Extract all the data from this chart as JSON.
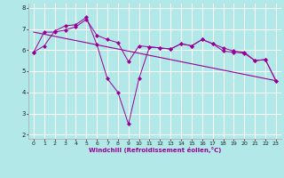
{
  "xlabel": "Windchill (Refroidissement éolien,°C)",
  "background_color": "#b2e8e8",
  "line_color": "#990099",
  "grid_color": "#ffffff",
  "xlim": [
    -0.5,
    23.5
  ],
  "ylim": [
    1.8,
    8.2
  ],
  "xticks": [
    0,
    1,
    2,
    3,
    4,
    5,
    6,
    7,
    8,
    9,
    10,
    11,
    12,
    13,
    14,
    15,
    16,
    17,
    18,
    19,
    20,
    21,
    22,
    23
  ],
  "yticks": [
    2,
    3,
    4,
    5,
    6,
    7,
    8
  ],
  "series1_x": [
    0,
    1,
    2,
    3,
    4,
    5,
    6,
    7,
    8,
    9,
    10,
    11,
    12,
    13,
    14,
    15,
    16,
    17,
    18,
    19,
    20,
    21,
    22,
    23
  ],
  "series1_y": [
    5.9,
    6.2,
    6.9,
    7.15,
    7.2,
    7.55,
    6.25,
    4.65,
    4.0,
    2.5,
    4.65,
    6.15,
    6.1,
    6.05,
    6.3,
    6.2,
    6.5,
    6.3,
    5.95,
    5.9,
    5.85,
    5.5,
    5.55,
    4.55
  ],
  "series2_x": [
    0,
    1,
    2,
    3,
    4,
    5,
    6,
    7,
    8,
    9,
    10,
    11,
    12,
    13,
    14,
    15,
    16,
    17,
    18,
    19,
    20,
    21,
    22,
    23
  ],
  "series2_y": [
    5.9,
    6.85,
    6.85,
    6.95,
    7.1,
    7.45,
    6.7,
    6.5,
    6.35,
    5.45,
    6.2,
    6.15,
    6.1,
    6.05,
    6.3,
    6.2,
    6.5,
    6.3,
    6.1,
    5.95,
    5.9,
    5.5,
    5.55,
    4.55
  ],
  "trend_x": [
    0,
    23
  ],
  "trend_y": [
    6.85,
    4.55
  ]
}
